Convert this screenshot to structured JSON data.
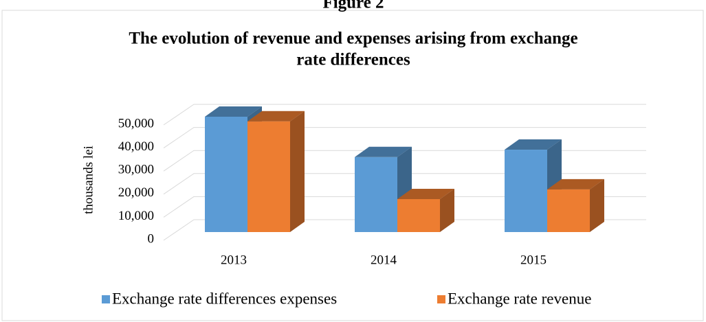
{
  "chart_data": {
    "type": "bar3d",
    "caption": "Figure 2",
    "title_lines": [
      "The evolution of revenue and expenses arising from exchange",
      "rate differences"
    ],
    "ylabel": "thousands lei",
    "categories": [
      "2013",
      "2014",
      "2015"
    ],
    "series": [
      {
        "name": "Exchange rate differences expenses",
        "color": "#5b9bd5",
        "values": [
          50000,
          32500,
          35700
        ]
      },
      {
        "name": "Exchange rate revenue",
        "color": "#ed7d31",
        "values": [
          48000,
          14300,
          18500
        ]
      }
    ],
    "ylim": [
      0,
      50000
    ],
    "yticks": [
      {
        "value": 0,
        "label": "0"
      },
      {
        "value": 10000,
        "label": "10,000"
      },
      {
        "value": 20000,
        "label": "20,000"
      },
      {
        "value": 30000,
        "label": "30,000"
      },
      {
        "value": 40000,
        "label": "40,000"
      },
      {
        "value": 50000,
        "label": "50,000"
      }
    ],
    "grid": true,
    "legend": "bottom"
  }
}
